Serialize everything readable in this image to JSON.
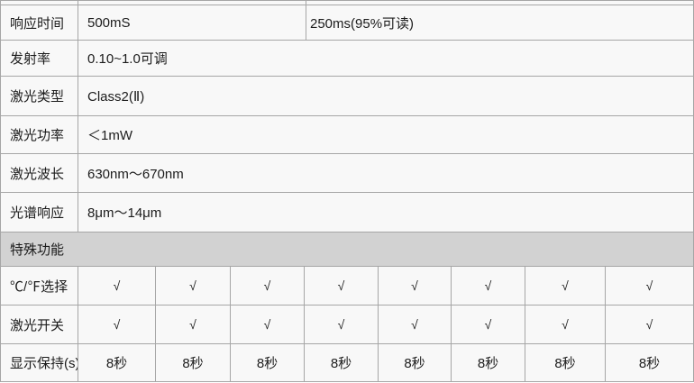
{
  "colors": {
    "cell_background": "#f8f8f8",
    "border": "#a6a6a6",
    "section_header_background": "#d2d2d2",
    "text": "#1c1c1c"
  },
  "table": {
    "spec_rows": [
      {
        "label": "响应时间",
        "value": "500mS",
        "value2": "250ms(95%可读)"
      },
      {
        "label": "发射率",
        "value": "0.10~1.0可调"
      },
      {
        "label": "激光类型",
        "value": "Class2(Ⅱ)"
      },
      {
        "label": "激光功率",
        "value": "＜1mW"
      },
      {
        "label": "激光波长",
        "value": "630nm～670nm"
      },
      {
        "label": "光谱响应",
        "value": "8μm～14μm"
      }
    ],
    "section_header": "特殊功能",
    "feature_rows": [
      {
        "label": "℃/℉选择",
        "values": [
          "√",
          "√",
          "√",
          "√",
          "√",
          "√",
          "√",
          "√"
        ]
      },
      {
        "label": "激光开关",
        "values": [
          "√",
          "√",
          "√",
          "√",
          "√",
          "√",
          "√",
          "√"
        ]
      },
      {
        "label": "显示保持(s)",
        "values": [
          "8秒",
          "8秒",
          "8秒",
          "8秒",
          "8秒",
          "8秒",
          "8秒",
          "8秒"
        ]
      }
    ]
  }
}
